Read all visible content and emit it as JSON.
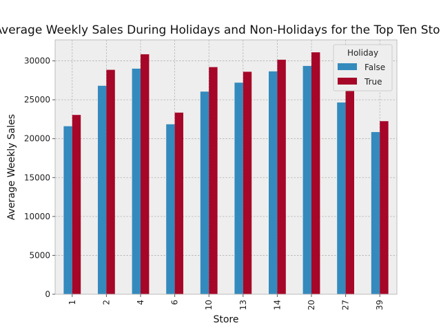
{
  "chart_data": {
    "type": "bar",
    "title": "Average Weekly Sales During Holidays and Non-Holidays for the Top Ten Stores",
    "xlabel": "Store",
    "ylabel": "Average Weekly Sales",
    "categories": [
      "1",
      "2",
      "4",
      "6",
      "10",
      "13",
      "14",
      "20",
      "27",
      "39"
    ],
    "series": [
      {
        "name": "False",
        "color": "#348abd",
        "values": [
          21600,
          26800,
          29000,
          21850,
          26050,
          27200,
          28650,
          29350,
          24650,
          20850
        ]
      },
      {
        "name": "True",
        "color": "#a60628",
        "values": [
          23050,
          28850,
          30850,
          23350,
          29200,
          28600,
          30150,
          31100,
          26350,
          22250
        ]
      }
    ],
    "ylim": [
      0,
      32700
    ],
    "yticks": [
      0,
      5000,
      10000,
      15000,
      20000,
      25000,
      30000
    ],
    "legend": {
      "title": "Holiday",
      "placement": "top-right"
    },
    "grid": true,
    "plot_background": "#eeeeee",
    "grid_color": "#b2b2b2"
  }
}
